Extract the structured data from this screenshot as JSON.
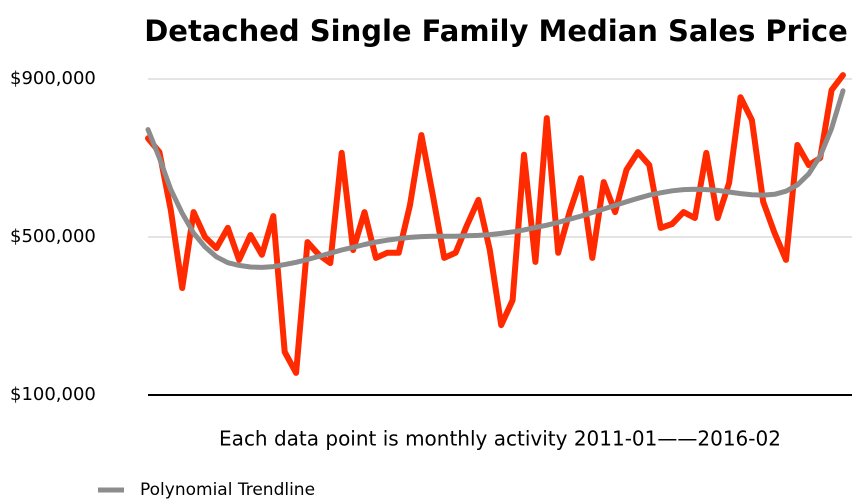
{
  "chart_data": {
    "type": "line",
    "title": "Detached Single Family Median Sales Price",
    "x_label": "Each data point is monthly activity 2011-01——2016-02",
    "categories": [
      null,
      null,
      null,
      null,
      null,
      null,
      null,
      null,
      null,
      null,
      null,
      null,
      null,
      null,
      null,
      null,
      null,
      null,
      null,
      null,
      null,
      null,
      null,
      null,
      null,
      null,
      null,
      null,
      null,
      null,
      null,
      null,
      null,
      null,
      null,
      null,
      null,
      null,
      null,
      null,
      null,
      null,
      null,
      null,
      null,
      null,
      null,
      null,
      null,
      null,
      null,
      null,
      null,
      null,
      null,
      null,
      null,
      null,
      null,
      null,
      null,
      null
    ],
    "series": [
      {
        "color": "#ff2a00",
        "values": [
          750000,
          715000,
          568000,
          371000,
          563000,
          500000,
          472000,
          523000,
          442000,
          505000,
          455000,
          553000,
          209000,
          156000,
          487000,
          455000,
          434000,
          713000,
          467000,
          563000,
          447000,
          460000,
          460000,
          581000,
          758000,
          606000,
          447000,
          460000,
          530000,
          594000,
          467000,
          277000,
          340000,
          708000,
          437000,
          801000,
          460000,
          563000,
          649000,
          447000,
          639000,
          563000,
          670000,
          715000,
          682000,
          523000,
          533000,
          563000,
          548000,
          713000,
          548000,
          637000,
          854000,
          796000,
          589000,
          510000,
          442000,
          733000,
          682000,
          700000,
          872000,
          910000
        ]
      },
      {
        "name": "Polynomial Trendline",
        "color": "#8c8c8c",
        "values": [
          772000,
          700000,
          620000,
          560000,
          510000,
          475000,
          450000,
          435000,
          428000,
          424000,
          423000,
          425000,
          430000,
          436000,
          443000,
          451000,
          459000,
          467000,
          474000,
          481000,
          487000,
          492000,
          496000,
          499000,
          501000,
          502000,
          502000,
          502000,
          503000,
          504000,
          506000,
          509000,
          513000,
          518000,
          524000,
          530000,
          537000,
          545000,
          553000,
          562000,
          571000,
          580000,
          589000,
          598000,
          606000,
          612000,
          617000,
          620000,
          621000,
          620000,
          618000,
          614000,
          610000,
          607000,
          606000,
          608000,
          616000,
          632000,
          660000,
          705000,
          775000,
          870000
        ]
      }
    ],
    "ylim": [
      100000,
      900000
    ],
    "yticks": [
      {
        "value": 100000,
        "label": "$100,000"
      },
      {
        "value": 500000,
        "label": "$500,000"
      },
      {
        "value": 900000,
        "label": "$900,000"
      }
    ],
    "grid": true,
    "legend": "bottom-left"
  }
}
